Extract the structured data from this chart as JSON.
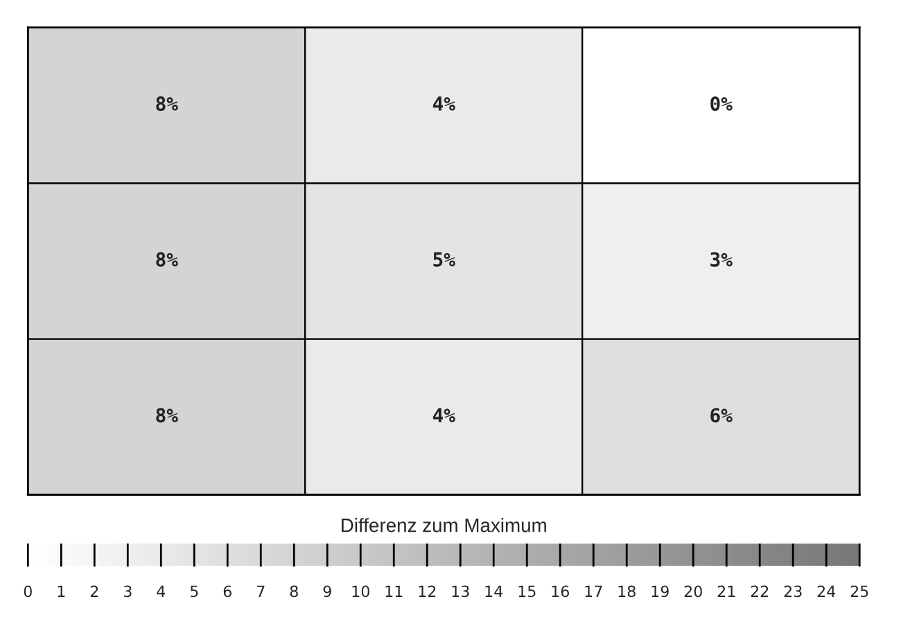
{
  "chart_data": {
    "type": "heatmap",
    "categories": [
      null,
      null,
      null
    ],
    "y_categories": [
      null,
      null,
      null
    ],
    "cells": [
      [
        8,
        4,
        0
      ],
      [
        8,
        5,
        3
      ],
      [
        8,
        4,
        6
      ]
    ],
    "cell_labels": [
      [
        "8%",
        "4%",
        "0%"
      ],
      [
        "8%",
        "5%",
        "3%"
      ],
      [
        "8%",
        "4%",
        "6%"
      ]
    ],
    "clim": [
      0,
      25
    ],
    "cticks": [
      0,
      1,
      2,
      3,
      4,
      5,
      6,
      7,
      8,
      9,
      10,
      11,
      12,
      13,
      14,
      15,
      16,
      17,
      18,
      19,
      20,
      21,
      22,
      23,
      24,
      25
    ],
    "clabel": "Differenz zum Maximum"
  }
}
